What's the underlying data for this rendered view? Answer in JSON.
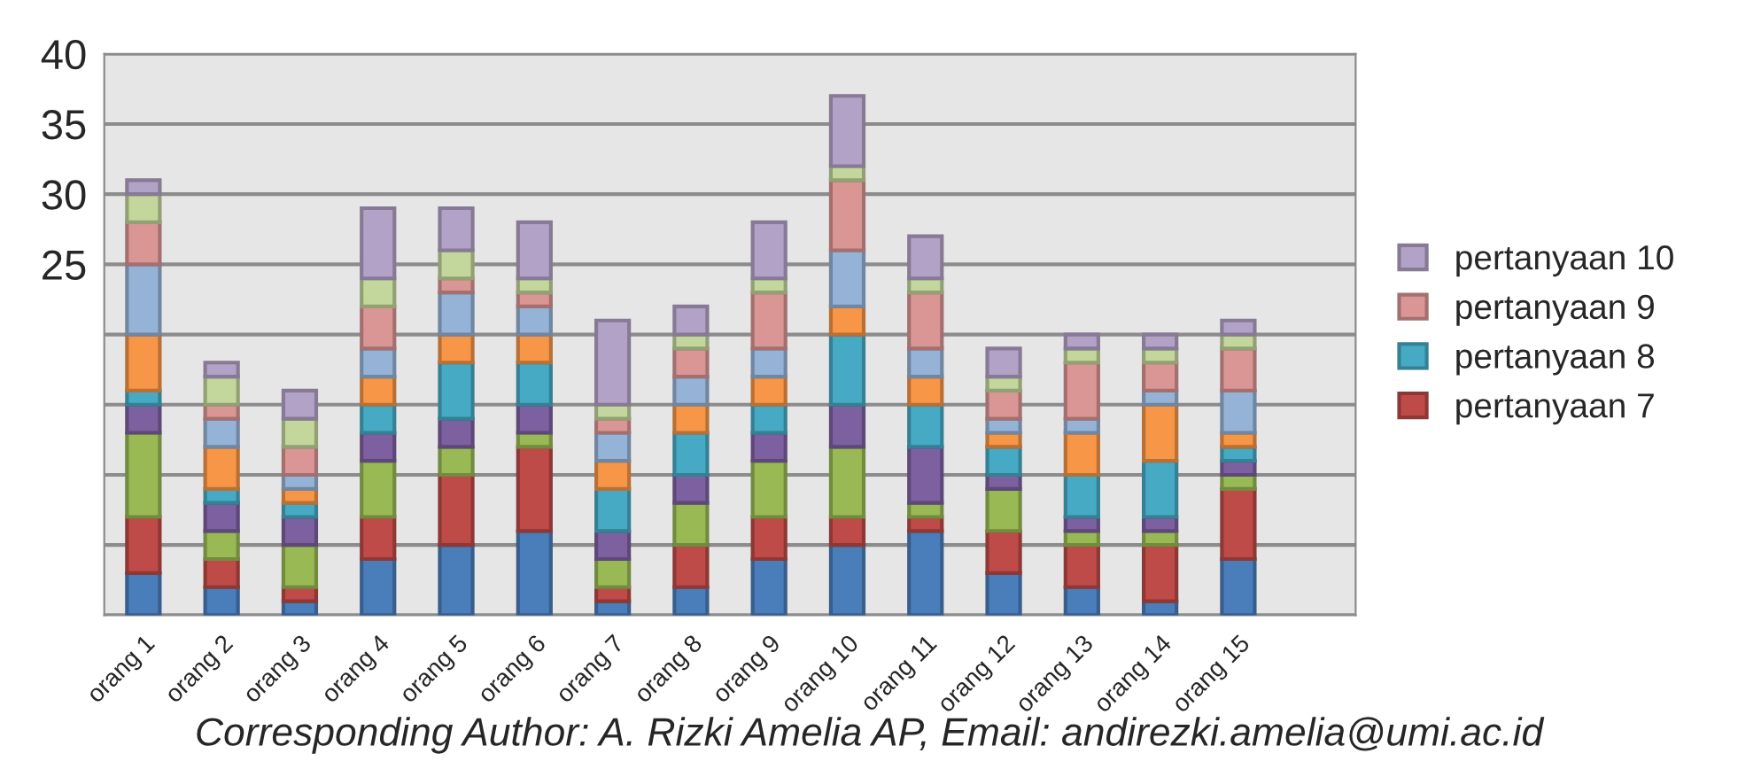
{
  "chart_data": {
    "type": "bar",
    "stacked": true,
    "categories": [
      "orang 1",
      "orang 2",
      "orang 3",
      "orang 4",
      "orang 5",
      "orang 6",
      "orang 7",
      "orang 8",
      "orang 9",
      "orang 10",
      "orang 11",
      "orang 12",
      "orang 13",
      "orang 14",
      "orang 15",
      null
    ],
    "series": [
      {
        "color": "#4a7ebb",
        "values": [
          3,
          2,
          1,
          4,
          5,
          6,
          1,
          2,
          4,
          5,
          6,
          3,
          2,
          1,
          4,
          null
        ]
      },
      {
        "name": "pertanyaan 7",
        "color": "#be4b48",
        "values": [
          4,
          2,
          1,
          3,
          5,
          6,
          1,
          3,
          3,
          2,
          1,
          3,
          3,
          4,
          5,
          null
        ]
      },
      {
        "color": "#98b954",
        "values": [
          6,
          2,
          3,
          4,
          2,
          1,
          2,
          3,
          4,
          5,
          1,
          3,
          1,
          1,
          1,
          null
        ]
      },
      {
        "color": "#7d60a0",
        "values": [
          2,
          2,
          2,
          2,
          2,
          2,
          2,
          2,
          2,
          3,
          4,
          1,
          1,
          1,
          1,
          null
        ]
      },
      {
        "name": "pertanyaan 8",
        "color": "#46aac5",
        "values": [
          1,
          1,
          1,
          2,
          4,
          3,
          3,
          3,
          2,
          5,
          3,
          2,
          3,
          4,
          1,
          null
        ]
      },
      {
        "color": "#f79646",
        "values": [
          4,
          3,
          1,
          2,
          2,
          2,
          2,
          2,
          2,
          2,
          2,
          1,
          3,
          4,
          1,
          null
        ]
      },
      {
        "color": "#95b3d7",
        "values": [
          5,
          2,
          1,
          2,
          3,
          2,
          2,
          2,
          2,
          4,
          2,
          1,
          1,
          1,
          3,
          null
        ]
      },
      {
        "name": "pertanyaan 9",
        "color": "#da9694",
        "values": [
          3,
          1,
          2,
          3,
          1,
          1,
          1,
          2,
          4,
          5,
          4,
          2,
          4,
          2,
          3,
          null
        ]
      },
      {
        "color": "#c3d69b",
        "values": [
          2,
          2,
          2,
          2,
          2,
          1,
          1,
          1,
          1,
          1,
          1,
          1,
          1,
          1,
          1,
          null
        ]
      },
      {
        "name": "pertanyaan 10",
        "color": "#b3a2c7",
        "values": [
          1,
          1,
          2,
          5,
          3,
          4,
          6,
          2,
          4,
          5,
          3,
          2,
          1,
          1,
          1,
          null
        ]
      }
    ],
    "ylim": [
      0,
      40
    ],
    "yticks": [
      {
        "value": 0,
        "label": null
      },
      {
        "value": 5,
        "label": null
      },
      {
        "value": 10,
        "label": null
      },
      {
        "value": 15,
        "label": null
      },
      {
        "value": 20,
        "label": null
      },
      {
        "value": 25,
        "label": "25"
      },
      {
        "value": 30,
        "label": "30"
      },
      {
        "value": 35,
        "label": "35"
      },
      {
        "value": 40,
        "label": "40"
      }
    ],
    "grid": "y",
    "legend": "right",
    "annotations": [
      "Corresponding Author: A. Rizki Amelia AP, Email: andirezki.amelia@umi.ac.id"
    ]
  }
}
